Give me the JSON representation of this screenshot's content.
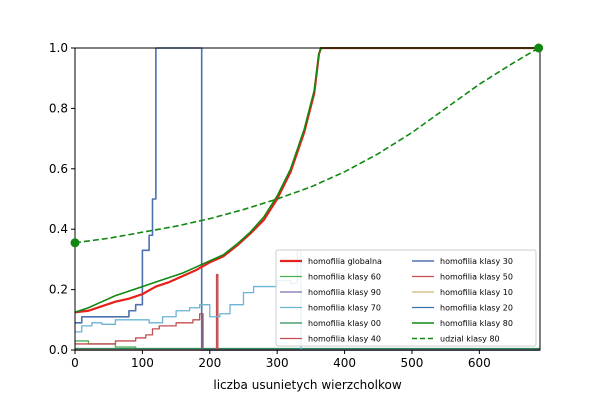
{
  "chart_data": {
    "type": "line",
    "title": "",
    "xlabel": "liczba usunietych wierzcholkow",
    "ylabel": "",
    "xlim": [
      0,
      690
    ],
    "ylim": [
      0,
      1.0
    ],
    "xticks": [
      0,
      100,
      200,
      300,
      400,
      500,
      600
    ],
    "yticks": [
      0.0,
      0.2,
      0.4,
      0.6,
      0.8,
      1.0
    ],
    "xtick_labels": [
      "0",
      "100",
      "200",
      "300",
      "400",
      "500",
      "600"
    ],
    "ytick_labels": [
      "0.0",
      "0.2",
      "0.4",
      "0.6",
      "0.8",
      "1.0"
    ],
    "grid": false,
    "legend_position": "lower-right",
    "legend_columns": 2,
    "series": [
      {
        "name": "homofilia globalna",
        "color": "#e6201b",
        "style": "solid",
        "width": 2.2,
        "step": false,
        "points": [
          [
            0,
            0.125
          ],
          [
            20,
            0.13
          ],
          [
            40,
            0.145
          ],
          [
            60,
            0.16
          ],
          [
            80,
            0.17
          ],
          [
            100,
            0.185
          ],
          [
            120,
            0.21
          ],
          [
            140,
            0.225
          ],
          [
            160,
            0.245
          ],
          [
            180,
            0.265
          ],
          [
            200,
            0.29
          ],
          [
            220,
            0.31
          ],
          [
            240,
            0.345
          ],
          [
            260,
            0.385
          ],
          [
            280,
            0.43
          ],
          [
            300,
            0.5
          ],
          [
            320,
            0.59
          ],
          [
            340,
            0.72
          ],
          [
            355,
            0.85
          ],
          [
            362,
            0.98
          ],
          [
            365,
            1.0
          ],
          [
            690,
            1.0
          ]
        ]
      },
      {
        "name": "homofilia klasy 60",
        "color": "#4caf50",
        "style": "solid",
        "width": 1.3,
        "step": true,
        "points": [
          [
            0,
            0.03
          ],
          [
            20,
            0.02
          ],
          [
            40,
            0.02
          ],
          [
            60,
            0.01
          ],
          [
            90,
            0.0
          ],
          [
            690,
            0.0
          ]
        ]
      },
      {
        "name": "homofilia klasy 90",
        "color": "#7e6fad",
        "style": "solid",
        "width": 1.3,
        "step": true,
        "points": [
          [
            0,
            0.0
          ],
          [
            690,
            0.0
          ]
        ]
      },
      {
        "name": "homofilia klasy 70",
        "color": "#6ab4d4",
        "style": "solid",
        "width": 1.3,
        "step": true,
        "points": [
          [
            0,
            0.06
          ],
          [
            10,
            0.08
          ],
          [
            25,
            0.09
          ],
          [
            40,
            0.085
          ],
          [
            60,
            0.1
          ],
          [
            80,
            0.1
          ],
          [
            95,
            0.1
          ],
          [
            110,
            0.09
          ],
          [
            130,
            0.11
          ],
          [
            150,
            0.13
          ],
          [
            170,
            0.14
          ],
          [
            185,
            0.15
          ],
          [
            200,
            0.11
          ],
          [
            215,
            0.12
          ],
          [
            230,
            0.15
          ],
          [
            250,
            0.19
          ],
          [
            265,
            0.21
          ],
          [
            290,
            0.21
          ],
          [
            300,
            0.23
          ],
          [
            320,
            0.22
          ],
          [
            330,
            0.33
          ],
          [
            335,
            0.0
          ],
          [
            690,
            0.0
          ]
        ]
      },
      {
        "name": "homofilia klasy 00",
        "color": "#2e8b57",
        "style": "solid",
        "width": 1.3,
        "step": true,
        "points": [
          [
            0,
            0.005
          ],
          [
            690,
            0.005
          ]
        ]
      },
      {
        "name": "homofilia klasy 40",
        "color": "#c44e52",
        "style": "solid",
        "width": 1.3,
        "step": true,
        "points": [
          [
            0,
            0.02
          ],
          [
            30,
            0.02
          ],
          [
            60,
            0.03
          ],
          [
            90,
            0.04
          ],
          [
            105,
            0.05
          ],
          [
            115,
            0.07
          ],
          [
            125,
            0.08
          ],
          [
            150,
            0.09
          ],
          [
            175,
            0.1
          ],
          [
            185,
            0.12
          ],
          [
            190,
            0.0
          ],
          [
            690,
            0.0
          ]
        ]
      },
      {
        "name": "homofilia klasy 30",
        "color": "#4c72b0",
        "style": "solid",
        "width": 1.6,
        "step": true,
        "points": [
          [
            0,
            0.09
          ],
          [
            10,
            0.11
          ],
          [
            70,
            0.11
          ],
          [
            80,
            0.13
          ],
          [
            90,
            0.15
          ],
          [
            100,
            0.33
          ],
          [
            110,
            0.38
          ],
          [
            115,
            0.5
          ],
          [
            118,
            0.5
          ],
          [
            120,
            1.0
          ],
          [
            185,
            1.0
          ],
          [
            188,
            0.0
          ],
          [
            690,
            0.0
          ]
        ]
      },
      {
        "name": "homofilia klasy 50",
        "color": "#c44e52",
        "style": "solid",
        "width": 1.3,
        "step": true,
        "points": [
          [
            0,
            0.0
          ],
          [
            205,
            0.0
          ],
          [
            210,
            0.25
          ],
          [
            212,
            0.0
          ],
          [
            690,
            0.0
          ]
        ]
      },
      {
        "name": "homofilia klasy 10",
        "color": "#ccb974",
        "style": "solid",
        "width": 1.3,
        "step": true,
        "points": [
          [
            0,
            0.0
          ],
          [
            690,
            0.0
          ]
        ]
      },
      {
        "name": "homofilia klasy 20",
        "color": "#3a6fa8",
        "style": "solid",
        "width": 1.3,
        "step": true,
        "points": [
          [
            0,
            0.0
          ],
          [
            690,
            0.0
          ]
        ]
      },
      {
        "name": "homofilia klasy 80",
        "color": "#118811",
        "style": "solid",
        "width": 1.6,
        "step": false,
        "points": [
          [
            0,
            0.125
          ],
          [
            20,
            0.14
          ],
          [
            40,
            0.16
          ],
          [
            60,
            0.18
          ],
          [
            80,
            0.195
          ],
          [
            100,
            0.21
          ],
          [
            120,
            0.225
          ],
          [
            140,
            0.24
          ],
          [
            160,
            0.255
          ],
          [
            180,
            0.275
          ],
          [
            200,
            0.295
          ],
          [
            220,
            0.315
          ],
          [
            240,
            0.35
          ],
          [
            260,
            0.39
          ],
          [
            280,
            0.44
          ],
          [
            300,
            0.51
          ],
          [
            320,
            0.6
          ],
          [
            340,
            0.73
          ],
          [
            355,
            0.86
          ],
          [
            362,
            0.98
          ],
          [
            365,
            1.0
          ],
          [
            690,
            1.0
          ]
        ]
      },
      {
        "name": "udzial klasy 80",
        "color": "#118811",
        "style": "dashed",
        "width": 1.6,
        "step": false,
        "marker_ends": true,
        "points": [
          [
            0,
            0.355
          ],
          [
            50,
            0.37
          ],
          [
            100,
            0.39
          ],
          [
            150,
            0.41
          ],
          [
            200,
            0.435
          ],
          [
            250,
            0.465
          ],
          [
            300,
            0.5
          ],
          [
            350,
            0.54
          ],
          [
            400,
            0.59
          ],
          [
            450,
            0.65
          ],
          [
            500,
            0.72
          ],
          [
            550,
            0.8
          ],
          [
            600,
            0.88
          ],
          [
            650,
            0.95
          ],
          [
            688,
            1.0
          ]
        ]
      }
    ]
  }
}
